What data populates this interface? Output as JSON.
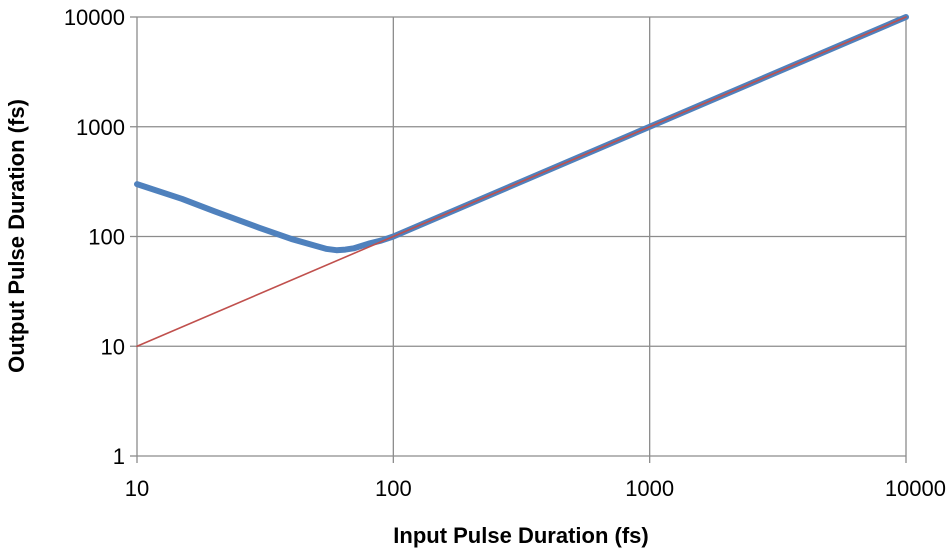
{
  "chart_data": {
    "type": "line",
    "xlabel": "Input Pulse Duration (fs)",
    "ylabel": "Output Pulse Duration (fs)",
    "x_scale": "log",
    "y_scale": "log",
    "xlim": [
      10,
      10000
    ],
    "ylim": [
      1,
      10000
    ],
    "x_ticks": [
      "10",
      "100",
      "1000",
      "10000"
    ],
    "y_ticks": [
      "1",
      "10",
      "100",
      "1000",
      "10000"
    ],
    "grid": true,
    "legend": "none",
    "series": [
      {
        "color": "#4f81bd",
        "points": [
          [
            10,
            300
          ],
          [
            15,
            220
          ],
          [
            20,
            170
          ],
          [
            30,
            120
          ],
          [
            40,
            95
          ],
          [
            50,
            82
          ],
          [
            55,
            77
          ],
          [
            60,
            75
          ],
          [
            65,
            76
          ],
          [
            70,
            78
          ],
          [
            80,
            86
          ],
          [
            90,
            92
          ],
          [
            100,
            100
          ],
          [
            1000,
            1000
          ],
          [
            10000,
            10000
          ]
        ]
      },
      {
        "color": "#c0504d",
        "points": [
          [
            10,
            10
          ],
          [
            10000,
            10000
          ]
        ]
      }
    ]
  }
}
